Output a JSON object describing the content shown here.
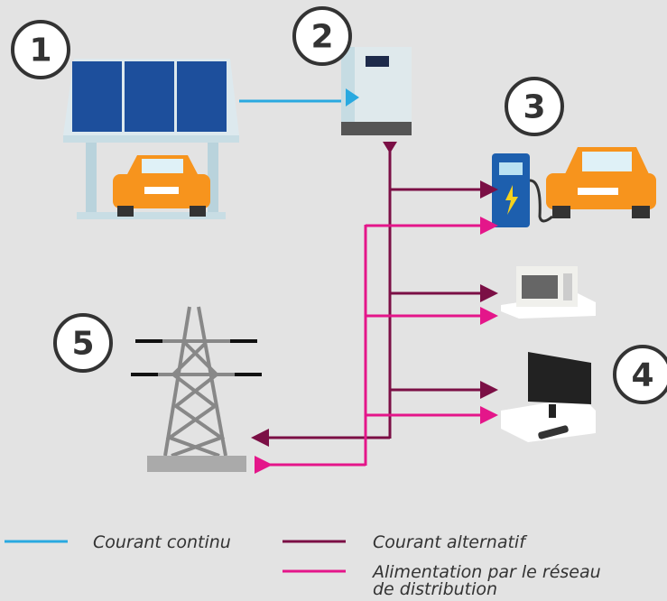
{
  "badges": [
    "1",
    "2",
    "3",
    "4",
    "5"
  ],
  "legend": [
    {
      "lines": [
        "Courant continu"
      ],
      "color": "#29a9e0"
    },
    {
      "lines": [
        "Courant alternatif"
      ],
      "color": "#7b0f45"
    },
    {
      "lines": [
        "Alimentation par le réseau",
        "de distribution"
      ],
      "color": "#e4168a"
    }
  ]
}
